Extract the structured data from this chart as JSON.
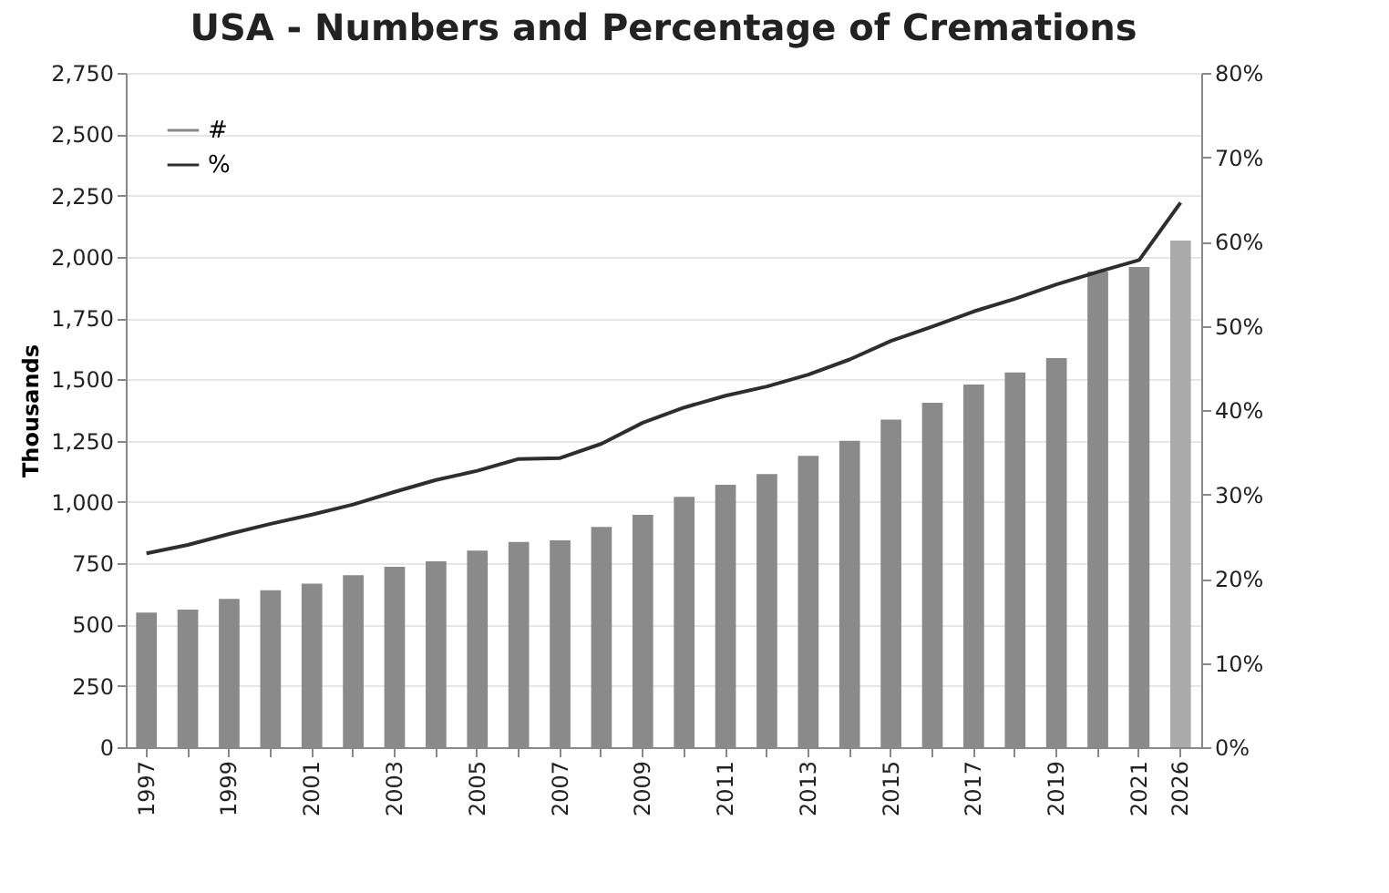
{
  "chart_data": {
    "type": "bar",
    "title": "USA - Numbers and Percentage of Cremations",
    "ylabel": "Thousands",
    "categories": [
      "1997",
      null,
      "1999",
      null,
      "2001",
      null,
      "2003",
      null,
      "2005",
      null,
      "2007",
      null,
      "2009",
      null,
      "2011",
      null,
      "2013",
      null,
      "2015",
      null,
      "2017",
      null,
      "2019",
      null,
      "2021",
      "2026"
    ],
    "series": [
      {
        "name": "#",
        "color": "#8a8a8a",
        "colors": [
          "#8a8a8a",
          "#8a8a8a",
          "#8a8a8a",
          "#8a8a8a",
          "#8a8a8a",
          "#8a8a8a",
          "#8a8a8a",
          "#8a8a8a",
          "#8a8a8a",
          "#8a8a8a",
          "#8a8a8a",
          "#8a8a8a",
          "#8a8a8a",
          "#8a8a8a",
          "#8a8a8a",
          "#8a8a8a",
          "#8a8a8a",
          "#8a8a8a",
          "#8a8a8a",
          "#8a8a8a",
          "#8a8a8a",
          "#8a8a8a",
          "#8a8a8a",
          "#8a8a8a",
          "#8a8a8a",
          "#ababab"
        ],
        "values": [
          549,
          561,
          605,
          640,
          667,
          701,
          736,
          758,
          802,
          837,
          844,
          898,
          948,
          1021,
          1070,
          1114,
          1188,
          1250,
          1336,
          1405,
          1479,
          1528,
          1587,
          1940,
          1958,
          2066
        ]
      },
      {
        "name": "%",
        "type": "line",
        "axis": "y2",
        "color": "#2e2e2e",
        "values": [
          23.0,
          24.0,
          25.3,
          26.5,
          27.6,
          28.8,
          30.3,
          31.7,
          32.8,
          34.2,
          34.3,
          36.0,
          38.5,
          40.3,
          41.7,
          42.8,
          44.2,
          46.0,
          48.2,
          49.9,
          51.7,
          53.2,
          54.9,
          56.4,
          57.8,
          64.6
        ]
      }
    ],
    "ylim": [
      0,
      2750
    ],
    "yticks": [
      0,
      250,
      500,
      750,
      {
        "value": 1000,
        "label": "1,000"
      },
      {
        "value": 1250,
        "label": "1,250"
      },
      {
        "value": 1500,
        "label": "1,500"
      },
      {
        "value": 1750,
        "label": "1,750"
      },
      {
        "value": 2000,
        "label": "2,000"
      },
      {
        "value": 2250,
        "label": "2,250"
      },
      {
        "value": 2500,
        "label": "2,500"
      },
      {
        "value": 2750,
        "label": "2,750"
      }
    ],
    "y2lim": [
      0,
      80
    ],
    "y2ticks": [
      {
        "value": 0,
        "label": "0%"
      },
      {
        "value": 10,
        "label": "10%"
      },
      {
        "value": 20,
        "label": "20%"
      },
      {
        "value": 30,
        "label": "30%"
      },
      {
        "value": 40,
        "label": "40%"
      },
      {
        "value": 50,
        "label": "50%"
      },
      {
        "value": 60,
        "label": "60%"
      },
      {
        "value": 70,
        "label": "70%"
      },
      {
        "value": 80,
        "label": "80%"
      }
    ],
    "grid": "y",
    "legend": "top left",
    "line_style": "solid"
  }
}
